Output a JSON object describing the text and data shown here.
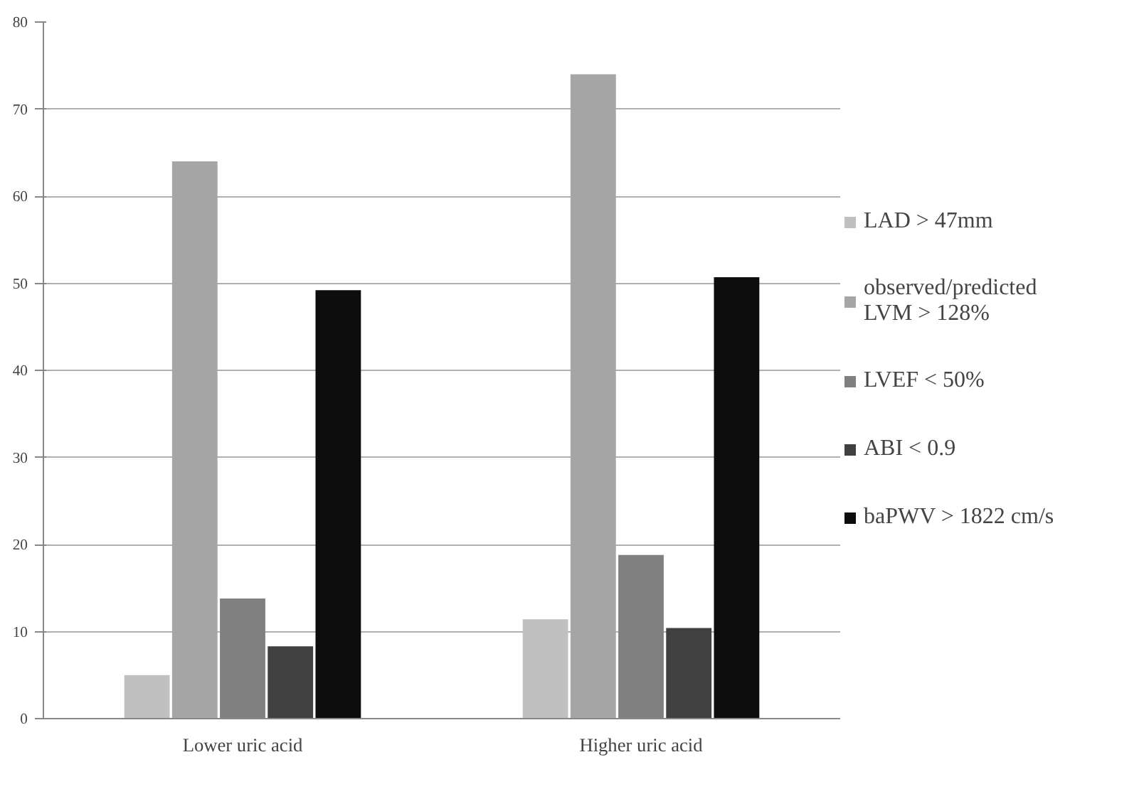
{
  "chart_data": {
    "type": "bar",
    "categories": [
      "Lower uric acid",
      "Higher uric acid"
    ],
    "series": [
      {
        "name": "LAD > 47mm",
        "color": "#c0c0c0",
        "values": [
          5,
          11.4
        ]
      },
      {
        "name": "observed/predicted LVM > 128%",
        "color": "#a6a6a6",
        "values": [
          64,
          74
        ]
      },
      {
        "name": "LVEF < 50%",
        "color": "#808080",
        "values": [
          13.8,
          18.8
        ]
      },
      {
        "name": "ABI < 0.9",
        "color": "#404040",
        "values": [
          8.3,
          10.4
        ]
      },
      {
        "name": "baPWV > 1822 cm/s",
        "color": "#0d0d0d",
        "values": [
          49.2,
          50.7
        ]
      }
    ],
    "ylim": [
      0,
      80
    ],
    "yticks": [
      0,
      10,
      20,
      30,
      40,
      50,
      60,
      70,
      80
    ],
    "grid": "y",
    "legend": "right"
  }
}
